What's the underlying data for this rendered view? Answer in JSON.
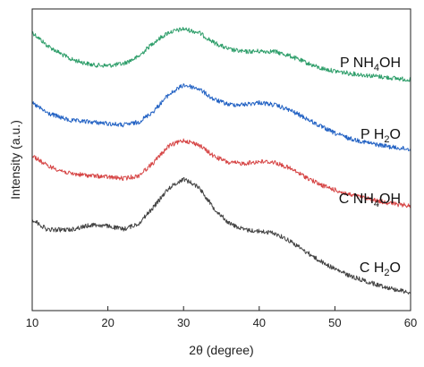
{
  "chart_data": {
    "type": "line",
    "xlabel": "2θ (degree)",
    "ylabel": "Intensity (a.u.)",
    "xlim": [
      10,
      60
    ],
    "xticks": [
      10,
      20,
      30,
      40,
      50,
      60
    ],
    "y_ticks_shown": false,
    "grid": false,
    "legend": "none (series labelled directly at right)",
    "series": [
      {
        "label_parts": [
          "P NH",
          "4",
          "OH"
        ],
        "color": "#2e9e6a",
        "x": [
          10,
          12,
          15,
          18,
          20,
          22,
          24,
          26,
          28,
          30,
          32,
          34,
          36,
          38,
          40,
          42,
          44,
          46,
          48,
          50,
          52,
          55,
          58,
          60
        ],
        "y": [
          0.923,
          0.878,
          0.834,
          0.814,
          0.812,
          0.818,
          0.841,
          0.888,
          0.922,
          0.934,
          0.922,
          0.889,
          0.866,
          0.858,
          0.86,
          0.859,
          0.845,
          0.824,
          0.804,
          0.794,
          0.786,
          0.778,
          0.77,
          0.765
        ]
      },
      {
        "label_parts": [
          "P H",
          "2",
          "O"
        ],
        "color": "#2463c4",
        "x": [
          10,
          12,
          15,
          18,
          20,
          22,
          24,
          26,
          28,
          30,
          32,
          34,
          36,
          38,
          40,
          42,
          44,
          46,
          48,
          50,
          52,
          55,
          58,
          60
        ],
        "y": [
          0.688,
          0.655,
          0.63,
          0.625,
          0.62,
          0.615,
          0.624,
          0.66,
          0.715,
          0.748,
          0.736,
          0.7,
          0.683,
          0.683,
          0.69,
          0.682,
          0.665,
          0.64,
          0.612,
          0.588,
          0.57,
          0.553,
          0.54,
          0.535
        ]
      },
      {
        "label_parts": [
          "C NH",
          "4",
          "OH"
        ],
        "color": "#d64545",
        "x": [
          10,
          12,
          15,
          18,
          20,
          22,
          24,
          26,
          28,
          30,
          32,
          34,
          36,
          38,
          40,
          42,
          44,
          46,
          48,
          50,
          52,
          55,
          58,
          60
        ],
        "y": [
          0.515,
          0.48,
          0.454,
          0.447,
          0.443,
          0.438,
          0.446,
          0.49,
          0.545,
          0.565,
          0.55,
          0.512,
          0.49,
          0.488,
          0.494,
          0.492,
          0.472,
          0.445,
          0.418,
          0.4,
          0.384,
          0.367,
          0.353,
          0.347
        ]
      },
      {
        "label_parts": [
          "C H",
          "2",
          "O"
        ],
        "color": "#444444",
        "x": [
          10,
          12,
          15,
          18,
          20,
          22,
          24,
          26,
          28,
          30,
          32,
          34,
          36,
          38,
          40,
          42,
          44,
          46,
          48,
          50,
          52,
          55,
          58,
          60
        ],
        "y": [
          0.303,
          0.268,
          0.268,
          0.285,
          0.28,
          0.27,
          0.287,
          0.342,
          0.405,
          0.437,
          0.41,
          0.34,
          0.29,
          0.268,
          0.263,
          0.257,
          0.232,
          0.198,
          0.165,
          0.138,
          0.115,
          0.09,
          0.07,
          0.06
        ]
      }
    ]
  }
}
